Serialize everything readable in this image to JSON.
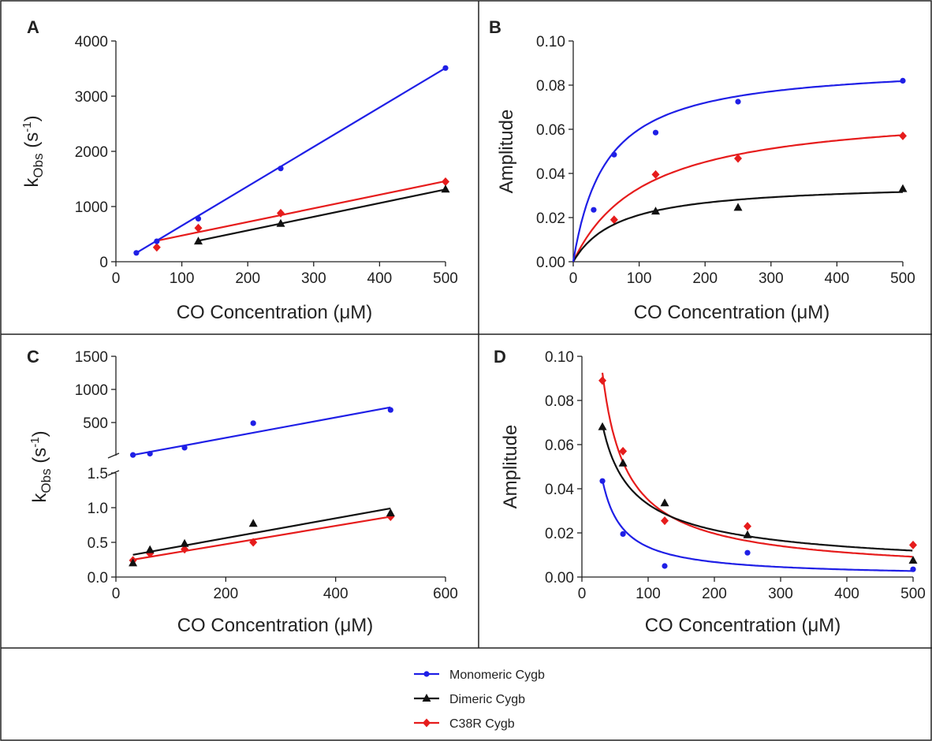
{
  "legend": {
    "entries": [
      {
        "name": "Monomeric Cygb",
        "color": "#1f1fe6",
        "marker": "circle"
      },
      {
        "name": "Dimeric Cygb",
        "color": "#111111",
        "marker": "triangle"
      },
      {
        "name": "C38R Cygb",
        "color": "#e61c1c",
        "marker": "diamond"
      }
    ]
  },
  "chart_data": [
    {
      "panel": "A",
      "type": "scatter",
      "xlabel": "CO Concentration (μM)",
      "ylabel": "kObs (s-1)",
      "xlim": [
        0,
        500
      ],
      "ylim": [
        0,
        4000
      ],
      "xticks": [
        "0",
        "100",
        "200",
        "300",
        "400",
        "500"
      ],
      "yticks": [
        "0",
        "1000",
        "2000",
        "3000",
        "4000"
      ],
      "fit": "linear",
      "series": [
        {
          "name": "Monomeric Cygb",
          "x": [
            31,
            62,
            125,
            250,
            500
          ],
          "y": [
            160,
            370,
            780,
            1690,
            3510
          ],
          "fit_line": [
            [
              31,
              160
            ],
            [
              500,
              3510
            ]
          ]
        },
        {
          "name": "Dimeric Cygb",
          "x": [
            125,
            250,
            500
          ],
          "y": [
            370,
            690,
            1310
          ],
          "fit_line": [
            [
              125,
              380
            ],
            [
              500,
              1310
            ]
          ]
        },
        {
          "name": "C38R Cygb",
          "x": [
            62,
            125,
            250,
            500
          ],
          "y": [
            260,
            610,
            880,
            1450
          ],
          "fit_line": [
            [
              62,
              380
            ],
            [
              500,
              1460
            ]
          ]
        }
      ]
    },
    {
      "panel": "B",
      "type": "scatter",
      "xlabel": "CO Concentration (μM)",
      "ylabel": "Amplitude",
      "xlim": [
        0,
        500
      ],
      "ylim": [
        0,
        0.1
      ],
      "xticks": [
        "0",
        "100",
        "200",
        "300",
        "400",
        "500"
      ],
      "yticks": [
        "0.00",
        "0.02",
        "0.04",
        "0.06",
        "0.08",
        "0.10"
      ],
      "fit": "hyperbolic",
      "series": [
        {
          "name": "Monomeric Cygb",
          "x": [
            31,
            62,
            125,
            250,
            500
          ],
          "y": [
            0.0235,
            0.0485,
            0.0585,
            0.0725,
            0.082
          ],
          "fit": {
            "amax": 0.09,
            "k": 50
          }
        },
        {
          "name": "Dimeric Cygb",
          "x": [
            125,
            250,
            500
          ],
          "y": [
            0.0228,
            0.0245,
            0.033
          ],
          "fit": {
            "amax": 0.036,
            "k": 70
          }
        },
        {
          "name": "C38R Cygb",
          "x": [
            62,
            125,
            250,
            500
          ],
          "y": [
            0.019,
            0.0395,
            0.0468,
            0.057
          ],
          "fit": {
            "amax": 0.07,
            "k": 110
          }
        }
      ]
    },
    {
      "panel": "C",
      "type": "scatter",
      "xlabel": "CO Concentration (μM)",
      "ylabel": "kObs (s-1)",
      "xlim": [
        0,
        600
      ],
      "ylim_lower": [
        0,
        1.5
      ],
      "ylim_upper": [
        0,
        1500
      ],
      "xticks": [
        "0",
        "200",
        "400",
        "600"
      ],
      "yticks_lower": [
        "0.0",
        "0.5",
        "1.0",
        "1.5"
      ],
      "yticks_upper": [
        "500",
        "1000",
        "1500"
      ],
      "axis_break": true,
      "fit": "linear",
      "series": [
        {
          "name": "Monomeric Cygb",
          "axis": "upper",
          "x": [
            31,
            62,
            125,
            250,
            500
          ],
          "y": [
            10,
            30,
            120,
            490,
            690
          ],
          "fit_line": [
            [
              31,
              10
            ],
            [
              500,
              730
            ]
          ]
        },
        {
          "name": "Dimeric Cygb",
          "axis": "lower",
          "x": [
            31,
            62,
            125,
            250,
            500
          ],
          "y": [
            0.2,
            0.39,
            0.48,
            0.77,
            0.92
          ],
          "fit_line": [
            [
              31,
              0.32
            ],
            [
              500,
              0.99
            ]
          ]
        },
        {
          "name": "C38R Cygb",
          "axis": "lower",
          "x": [
            31,
            62,
            125,
            250,
            500
          ],
          "y": [
            0.24,
            0.34,
            0.4,
            0.5,
            0.87
          ],
          "fit_line": [
            [
              31,
              0.25
            ],
            [
              500,
              0.87
            ]
          ]
        }
      ]
    },
    {
      "panel": "D",
      "type": "scatter",
      "xlabel": "CO Concentration (μM)",
      "ylabel": "Amplitude",
      "xlim": [
        0,
        500
      ],
      "ylim": [
        0,
        0.1
      ],
      "xticks": [
        "0",
        "100",
        "200",
        "300",
        "400",
        "500"
      ],
      "yticks": [
        "0.00",
        "0.02",
        "0.04",
        "0.06",
        "0.08",
        "0.10"
      ],
      "fit": "decay",
      "series": [
        {
          "name": "Monomeric Cygb",
          "x": [
            31,
            62,
            125,
            250,
            500
          ],
          "y": [
            0.0435,
            0.0195,
            0.005,
            0.011,
            0.0035
          ],
          "fit": {
            "c": 1.36,
            "p": 1.0
          }
        },
        {
          "name": "Dimeric Cygb",
          "x": [
            31,
            62,
            125,
            250,
            500
          ],
          "y": [
            0.068,
            0.0515,
            0.0335,
            0.019,
            0.0075
          ],
          "fit": {
            "c": 0.6,
            "p": 0.63
          }
        },
        {
          "name": "C38R Cygb",
          "x": [
            31,
            62,
            125,
            250,
            500
          ],
          "y": [
            0.089,
            0.057,
            0.0255,
            0.023,
            0.0145
          ],
          "fit": {
            "c": 1.6,
            "p": 0.83
          }
        }
      ]
    }
  ]
}
